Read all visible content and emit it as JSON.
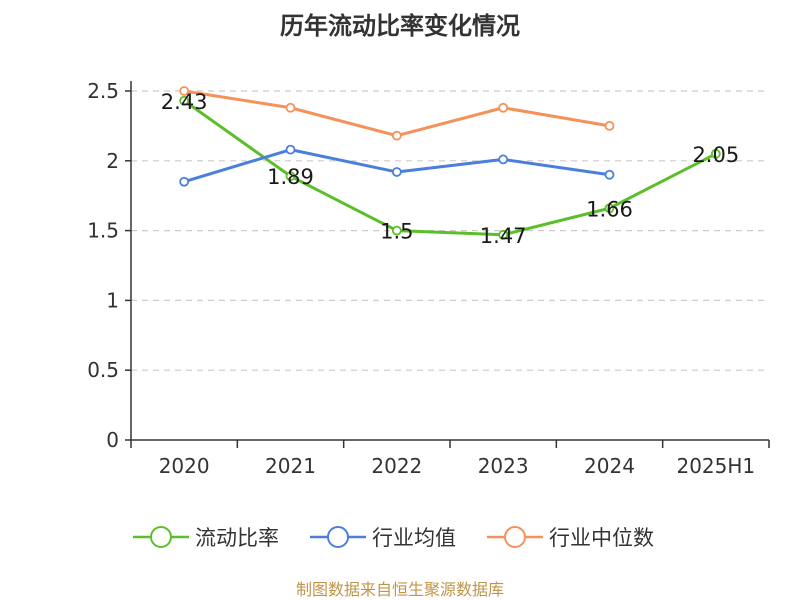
{
  "title": "历年流动比率变化情况",
  "source": "制图数据来自恒生聚源数据库",
  "chart_data": {
    "type": "line",
    "categories": [
      "2020",
      "2021",
      "2022",
      "2023",
      "2024",
      "2025H1"
    ],
    "ylim": [
      0,
      2.5
    ],
    "yticks": [
      "0",
      "0.5",
      "1",
      "1.5",
      "2",
      "2.5"
    ],
    "grid": true,
    "legend_position": "bottom",
    "series": [
      {
        "name": "流动比率",
        "color": "#5cbf2a",
        "values": [
          2.43,
          1.89,
          1.5,
          1.47,
          1.66,
          2.05
        ],
        "labels": [
          "2.43",
          "1.89",
          "1.5",
          "1.47",
          "1.66",
          "2.05"
        ]
      },
      {
        "name": "行业均值",
        "color": "#4a7fdc",
        "values": [
          1.85,
          2.08,
          1.92,
          2.01,
          1.9,
          null
        ]
      },
      {
        "name": "行业中位数",
        "color": "#f5915a",
        "values": [
          2.5,
          2.38,
          2.18,
          2.38,
          2.25,
          null
        ]
      }
    ]
  }
}
